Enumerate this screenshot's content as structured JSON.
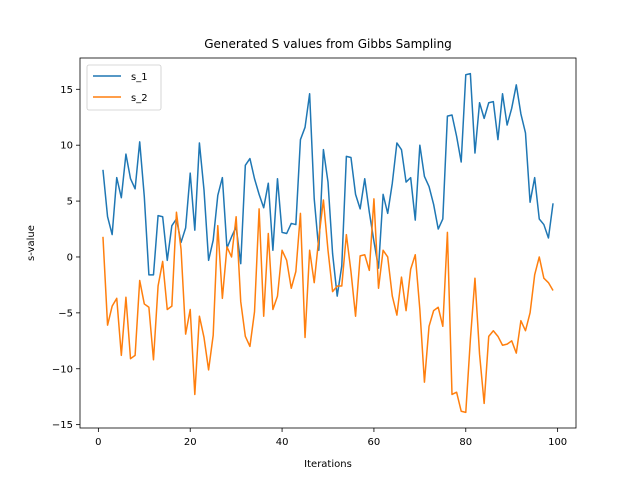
{
  "chart_data": {
    "type": "line",
    "title": "Generated S values from Gibbs Sampling",
    "xlabel": "Iterations",
    "ylabel": "s-value",
    "xlim": [
      -4,
      104
    ],
    "ylim": [
      -15.3,
      17.8
    ],
    "xticks": [
      0,
      20,
      40,
      60,
      80,
      100
    ],
    "yticks": [
      -15,
      -10,
      -5,
      0,
      5,
      10,
      15
    ],
    "grid": false,
    "legend_position": "upper-left",
    "x": [
      1,
      2,
      3,
      4,
      5,
      6,
      7,
      8,
      9,
      10,
      11,
      12,
      13,
      14,
      15,
      16,
      17,
      18,
      19,
      20,
      21,
      22,
      23,
      24,
      25,
      26,
      27,
      28,
      29,
      30,
      31,
      32,
      33,
      34,
      35,
      36,
      37,
      38,
      39,
      40,
      41,
      42,
      43,
      44,
      45,
      46,
      47,
      48,
      49,
      50,
      51,
      52,
      53,
      54,
      55,
      56,
      57,
      58,
      59,
      60,
      61,
      62,
      63,
      64,
      65,
      66,
      67,
      68,
      69,
      70,
      71,
      72,
      73,
      74,
      75,
      76,
      77,
      78,
      79,
      80,
      81,
      82,
      83,
      84,
      85,
      86,
      87,
      88,
      89,
      90,
      91,
      92,
      93,
      94,
      95,
      96,
      97,
      98,
      99
    ],
    "series": [
      {
        "name": "s_1",
        "color": "#1f77b4",
        "values": [
          7.8,
          3.6,
          2.0,
          7.1,
          5.3,
          9.2,
          7.0,
          6.1,
          10.3,
          5.4,
          -1.6,
          -1.6,
          3.7,
          3.6,
          -0.3,
          2.8,
          3.4,
          1.3,
          2.6,
          7.5,
          2.4,
          10.2,
          6.0,
          -0.3,
          1.5,
          5.5,
          7.1,
          0.8,
          1.8,
          2.7,
          -0.6,
          8.2,
          8.8,
          7.0,
          5.6,
          4.4,
          6.6,
          0.6,
          7.0,
          2.2,
          2.1,
          3.0,
          2.9,
          10.5,
          11.6,
          14.6,
          5.2,
          0.6,
          9.6,
          6.7,
          0.3,
          -3.5,
          -0.8,
          9.0,
          8.9,
          5.6,
          4.3,
          7.0,
          4.0,
          1.4,
          -1.0,
          5.6,
          3.9,
          6.6,
          10.2,
          9.6,
          6.7,
          7.1,
          3.3,
          10.0,
          7.2,
          6.3,
          4.7,
          2.5,
          3.4,
          12.6,
          12.7,
          10.8,
          8.5,
          16.3,
          16.4,
          9.3,
          13.8,
          12.4,
          13.8,
          13.9,
          10.5,
          14.6,
          11.8,
          13.3,
          15.4,
          12.8,
          11.1,
          4.9,
          7.1,
          3.4,
          2.9,
          1.7,
          4.8
        ]
      },
      {
        "name": "s_2",
        "color": "#ff7f0e",
        "values": [
          1.8,
          -6.1,
          -4.4,
          -3.7,
          -8.8,
          -3.6,
          -9.1,
          -8.8,
          -2.1,
          -4.2,
          -4.5,
          -9.2,
          -2.6,
          -0.4,
          -4.7,
          -4.4,
          4.0,
          0.7,
          -6.9,
          -4.7,
          -12.3,
          -5.3,
          -7.2,
          -10.1,
          -7.0,
          2.8,
          -3.7,
          0.9,
          0.0,
          3.6,
          -4.0,
          -7.1,
          -8.0,
          -4.9,
          4.3,
          -5.3,
          2.1,
          -4.7,
          -3.5,
          0.6,
          -0.3,
          -2.8,
          -1.3,
          3.9,
          -7.2,
          0.6,
          -2.3,
          1.7,
          5.1,
          0.6,
          -3.1,
          -2.6,
          -2.6,
          2.0,
          -1.3,
          -5.3,
          0.1,
          0.2,
          -1.2,
          5.2,
          -2.8,
          0.6,
          0.0,
          -3.5,
          -5.2,
          -1.8,
          -4.8,
          -1.1,
          0.2,
          -4.7,
          -11.2,
          -6.2,
          -4.8,
          -4.5,
          -6.2,
          2.2,
          -12.3,
          -12.1,
          -13.8,
          -13.9,
          -7.4,
          -1.9,
          -8.7,
          -13.1,
          -7.1,
          -6.6,
          -7.1,
          -7.9,
          -7.8,
          -7.5,
          -8.6,
          -5.7,
          -6.6,
          -5.0,
          -1.6,
          0.0,
          -1.9,
          -2.3,
          -3.0
        ]
      }
    ]
  }
}
